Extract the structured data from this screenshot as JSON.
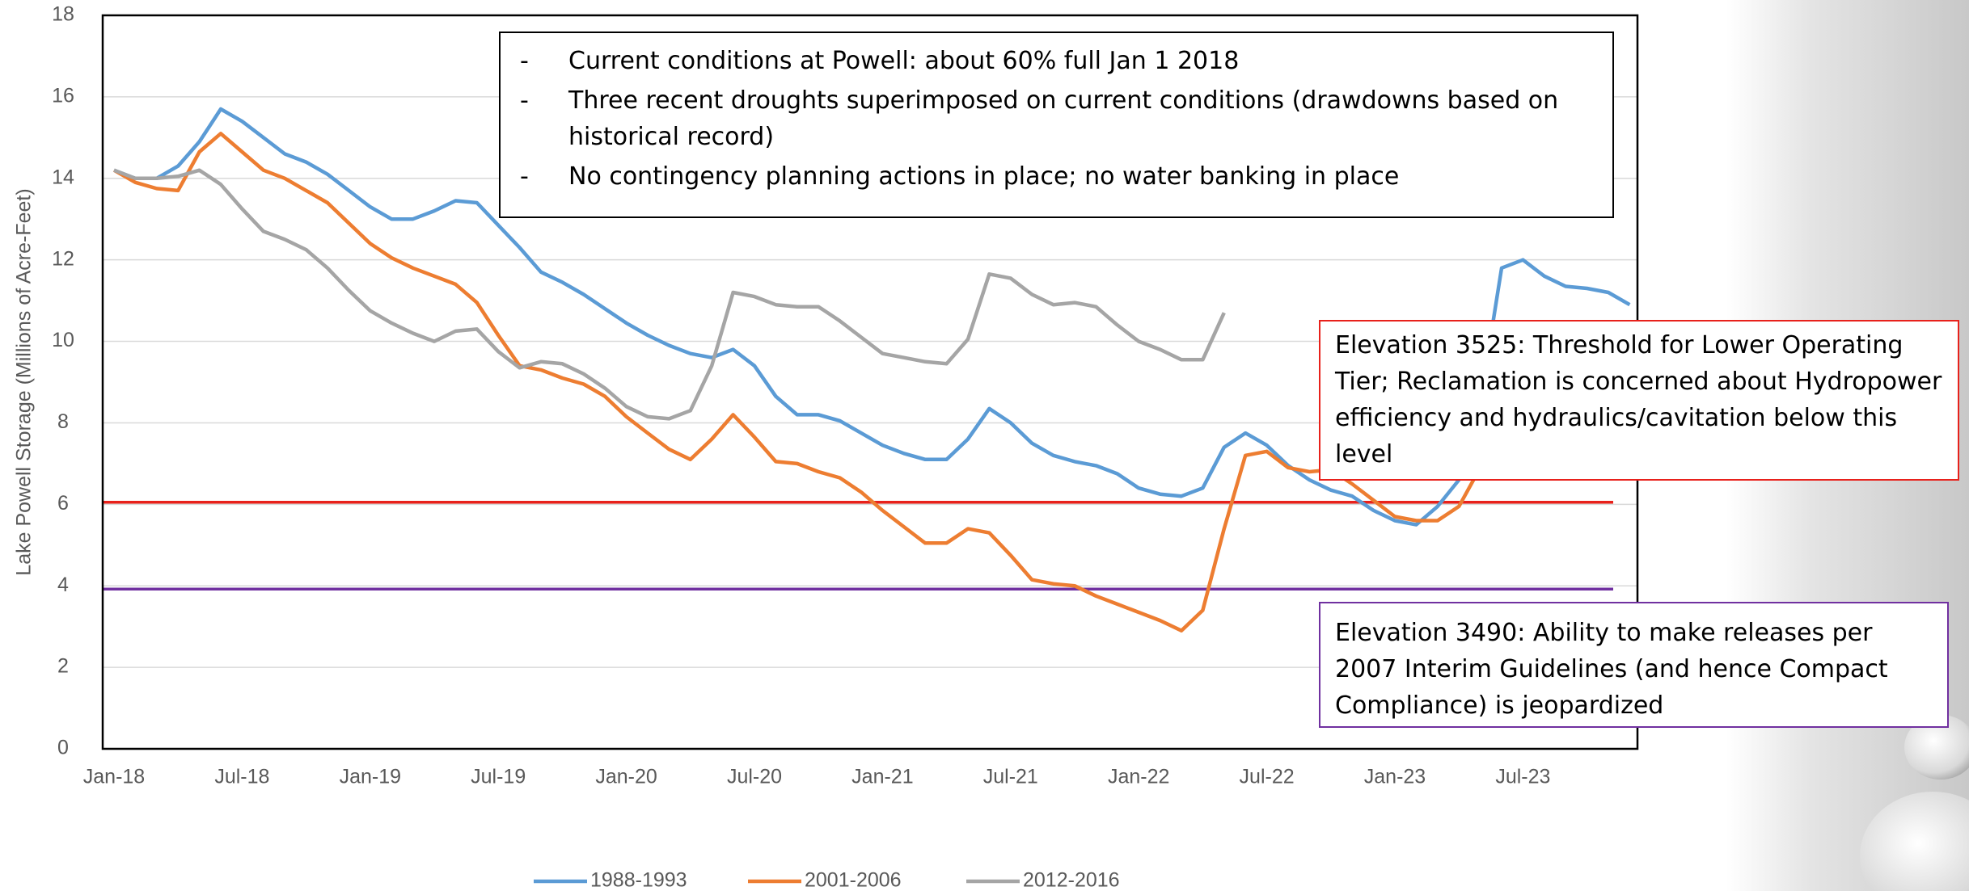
{
  "chart_data": {
    "type": "line",
    "y_label": "Lake Powell Storage (Millions of Acre-Feet)",
    "categories": [
      "Jan-18",
      null,
      null,
      null,
      null,
      null,
      "Jul-18",
      null,
      null,
      null,
      null,
      null,
      "Jan-19",
      null,
      null,
      null,
      null,
      null,
      "Jul-19",
      null,
      null,
      null,
      null,
      null,
      "Jan-20",
      null,
      null,
      null,
      null,
      null,
      "Jul-20",
      null,
      null,
      null,
      null,
      null,
      "Jan-21",
      null,
      null,
      null,
      null,
      null,
      "Jul-21",
      null,
      null,
      null,
      null,
      null,
      "Jan-22",
      null,
      null,
      null,
      null,
      null,
      "Jul-22",
      null,
      null,
      null,
      null,
      null,
      "Jan-23",
      null,
      null,
      null,
      null,
      null,
      "Jul-23",
      null,
      null,
      null,
      null,
      null
    ],
    "series": [
      {
        "name": "1988-1993",
        "color": "#5b9bd5",
        "values": [
          14.2,
          14.0,
          14.0,
          14.3,
          14.9,
          15.7,
          15.4,
          15.0,
          14.6,
          14.4,
          14.1,
          13.7,
          13.3,
          13.0,
          13.0,
          13.2,
          13.45,
          13.4,
          12.85,
          12.3,
          11.7,
          11.45,
          11.15,
          10.8,
          10.45,
          10.15,
          9.9,
          9.7,
          9.6,
          9.8,
          9.4,
          8.65,
          8.2,
          8.2,
          8.05,
          7.75,
          7.45,
          7.25,
          7.1,
          7.1,
          7.6,
          8.35,
          8.0,
          7.5,
          7.2,
          7.05,
          6.95,
          6.75,
          6.4,
          6.25,
          6.2,
          6.4,
          7.4,
          7.75,
          7.45,
          6.95,
          6.6,
          6.35,
          6.2,
          5.85,
          5.6,
          5.5,
          5.95,
          6.6,
          8.5,
          11.8,
          12.0,
          11.6,
          11.35,
          11.3,
          11.2,
          10.9
        ]
      },
      {
        "name": "2001-2006",
        "color": "#ed7d31",
        "values": [
          14.2,
          13.9,
          13.75,
          13.7,
          14.65,
          15.1,
          14.65,
          14.2,
          14.0,
          13.7,
          13.4,
          12.9,
          12.4,
          12.05,
          11.8,
          11.6,
          11.4,
          10.95,
          10.15,
          9.4,
          9.3,
          9.1,
          8.95,
          8.65,
          8.15,
          7.75,
          7.35,
          7.1,
          7.6,
          8.2,
          7.65,
          7.05,
          7.0,
          6.8,
          6.65,
          6.3,
          5.85,
          5.45,
          5.05,
          5.05,
          5.4,
          5.3,
          4.75,
          4.15,
          4.05,
          4.0,
          3.75,
          3.55,
          3.35,
          3.15,
          2.9,
          3.4,
          5.4,
          7.2,
          7.3,
          6.9,
          6.8,
          6.85,
          6.5,
          6.1,
          5.7,
          5.6,
          5.6,
          5.95,
          6.9,
          null,
          null,
          null,
          null,
          null,
          null,
          null
        ]
      },
      {
        "name": "2012-2016",
        "color": "#a5a5a5",
        "values": [
          14.2,
          14.0,
          14.0,
          14.05,
          14.2,
          13.85,
          13.25,
          12.7,
          12.5,
          12.25,
          11.8,
          11.25,
          10.75,
          10.45,
          10.2,
          10.0,
          10.25,
          10.3,
          9.75,
          9.35,
          9.5,
          9.45,
          9.2,
          8.85,
          8.4,
          8.15,
          8.1,
          8.3,
          9.4,
          11.2,
          11.1,
          10.9,
          10.85,
          10.85,
          10.5,
          10.1,
          9.7,
          9.6,
          9.5,
          9.45,
          10.05,
          11.65,
          11.55,
          11.15,
          10.9,
          10.95,
          10.85,
          10.4,
          10.0,
          9.8,
          9.55,
          9.55,
          10.7,
          null,
          null,
          null,
          null,
          null,
          null,
          null,
          null,
          null,
          null,
          null,
          null,
          null,
          null,
          null,
          null,
          null,
          null,
          null
        ]
      }
    ],
    "reference_lines": [
      {
        "value": 6.05,
        "color": "#e8211b",
        "label": "Elevation 3525: Threshold for Lower Operating Tier; Reclamation is concerned about Hydropower efficiency and hydraulics/cavitation below this level"
      },
      {
        "value": 3.92,
        "color": "#7030a0",
        "label": "Elevation 3490: Ability to make releases per 2007 Interim Guidelines (and hence Compact Compliance) is jeopardized"
      }
    ],
    "notes": [
      "Current conditions at Powell: about 60% full Jan 1 2018",
      "Three recent droughts superimposed on current conditions (drawdowns based on historical record)",
      "No contingency planning actions in place; no water banking in place"
    ],
    "ylim": [
      0,
      18
    ],
    "yticks": [
      0,
      2,
      4,
      6,
      8,
      10,
      12,
      14,
      16,
      18
    ],
    "grid": true
  }
}
